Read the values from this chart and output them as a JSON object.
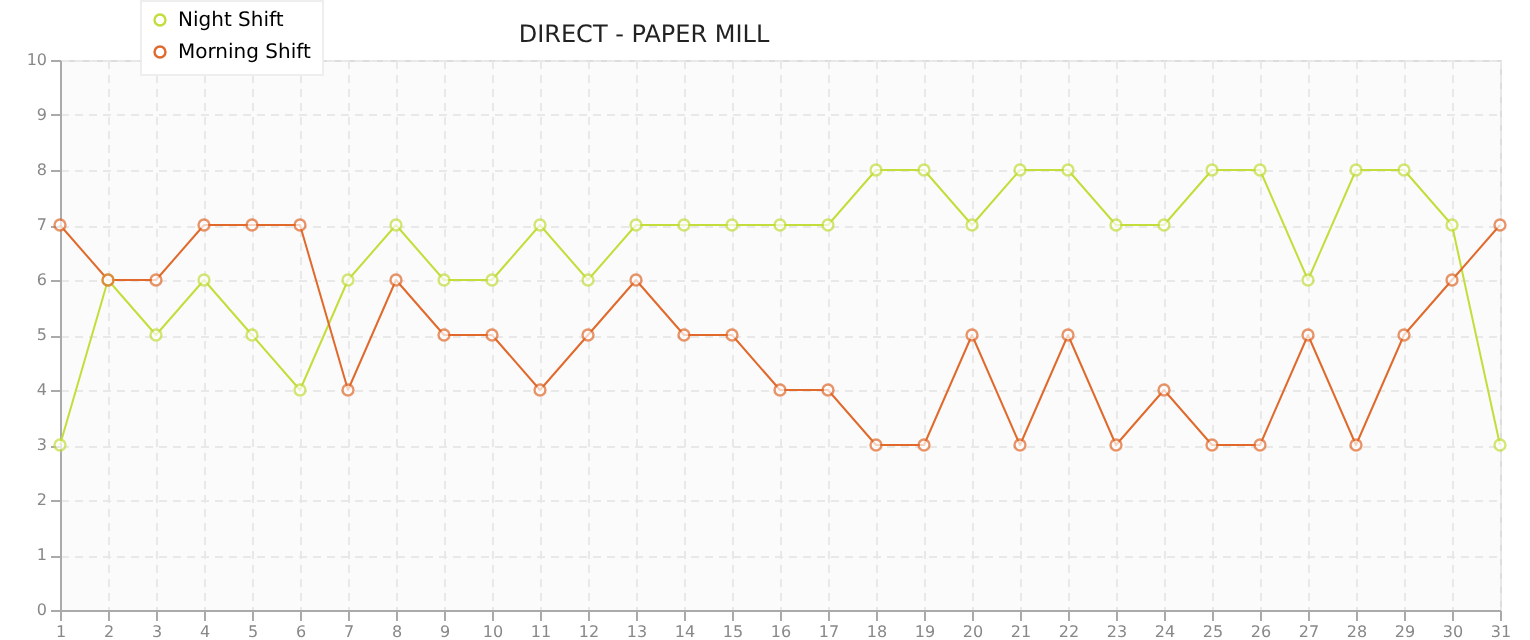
{
  "chart_data": {
    "type": "line",
    "title": "DIRECT - PAPER MILL",
    "x": [
      1,
      2,
      3,
      4,
      5,
      6,
      7,
      8,
      9,
      10,
      11,
      12,
      13,
      14,
      15,
      16,
      17,
      18,
      19,
      20,
      21,
      22,
      23,
      24,
      25,
      26,
      27,
      28,
      29,
      30,
      31
    ],
    "series": [
      {
        "name": "Night Shift",
        "color": "#c3dd3a",
        "values": [
          3,
          6,
          5,
          6,
          5,
          4,
          6,
          7,
          6,
          6,
          7,
          6,
          7,
          7,
          7,
          7,
          7,
          8,
          8,
          7,
          8,
          8,
          7,
          7,
          8,
          8,
          6,
          8,
          8,
          7,
          3
        ]
      },
      {
        "name": "Morning Shift",
        "color": "#e0692b",
        "values": [
          7,
          6,
          6,
          7,
          7,
          7,
          4,
          6,
          5,
          5,
          4,
          5,
          6,
          5,
          5,
          4,
          4,
          3,
          3,
          5,
          3,
          5,
          3,
          4,
          3,
          3,
          5,
          3,
          5,
          6,
          7
        ]
      }
    ],
    "xlim": [
      1,
      31
    ],
    "xticks": [
      1,
      2,
      3,
      4,
      5,
      6,
      7,
      8,
      9,
      10,
      11,
      12,
      13,
      14,
      15,
      16,
      17,
      18,
      19,
      20,
      21,
      22,
      23,
      24,
      25,
      26,
      27,
      28,
      29,
      30,
      31
    ],
    "ylim": [
      0,
      10
    ],
    "yticks": [
      0,
      1,
      2,
      3,
      4,
      5,
      6,
      7,
      8,
      9,
      10
    ],
    "grid": true,
    "legend": "top left",
    "marker": "circle",
    "line_style": "solid"
  }
}
